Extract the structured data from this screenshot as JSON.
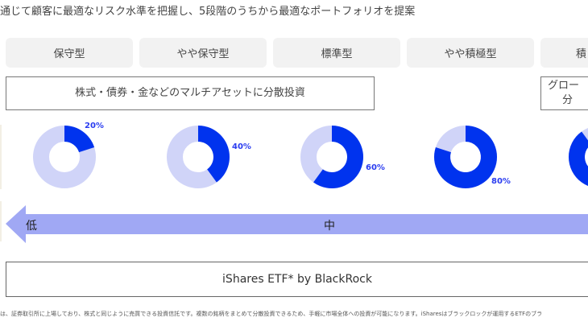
{
  "heading": "通じて顧客に最適なリスク水準を把握し、5段階のうちから最適なポートフォリオを提案",
  "risk_levels": [
    "保守型",
    "やや保守型",
    "標準型",
    "やや積極型",
    "積"
  ],
  "asset_box_main": "株式・債券・金などのマルチアセットに分散投資",
  "asset_box_right_line1": "グロー",
  "asset_box_right_line2": "分",
  "donuts": [
    {
      "percent": 20,
      "label": "20%"
    },
    {
      "percent": 40,
      "label": "40%"
    },
    {
      "percent": 60,
      "label": "60%"
    },
    {
      "percent": 80,
      "label": "80%"
    },
    {
      "percent": 90,
      "label": ""
    }
  ],
  "risk_arrow": {
    "low": "低",
    "mid": "中"
  },
  "product_box": "iShares ETF* by BlackRock",
  "footnote": "は、証券取引所に上場しており、株式と同じように売買できる投資信託です。複数の銘柄をまとめて分散投資できるため、手軽に市場全体への投資が可能になります。iSharesはブラックロックが運用するETFのブラ",
  "colors": {
    "accent": "#0033ee",
    "donut_bg": "#d0d4f8",
    "arrow": "#a0a8f4",
    "tab_bg": "#f2f2f2"
  }
}
